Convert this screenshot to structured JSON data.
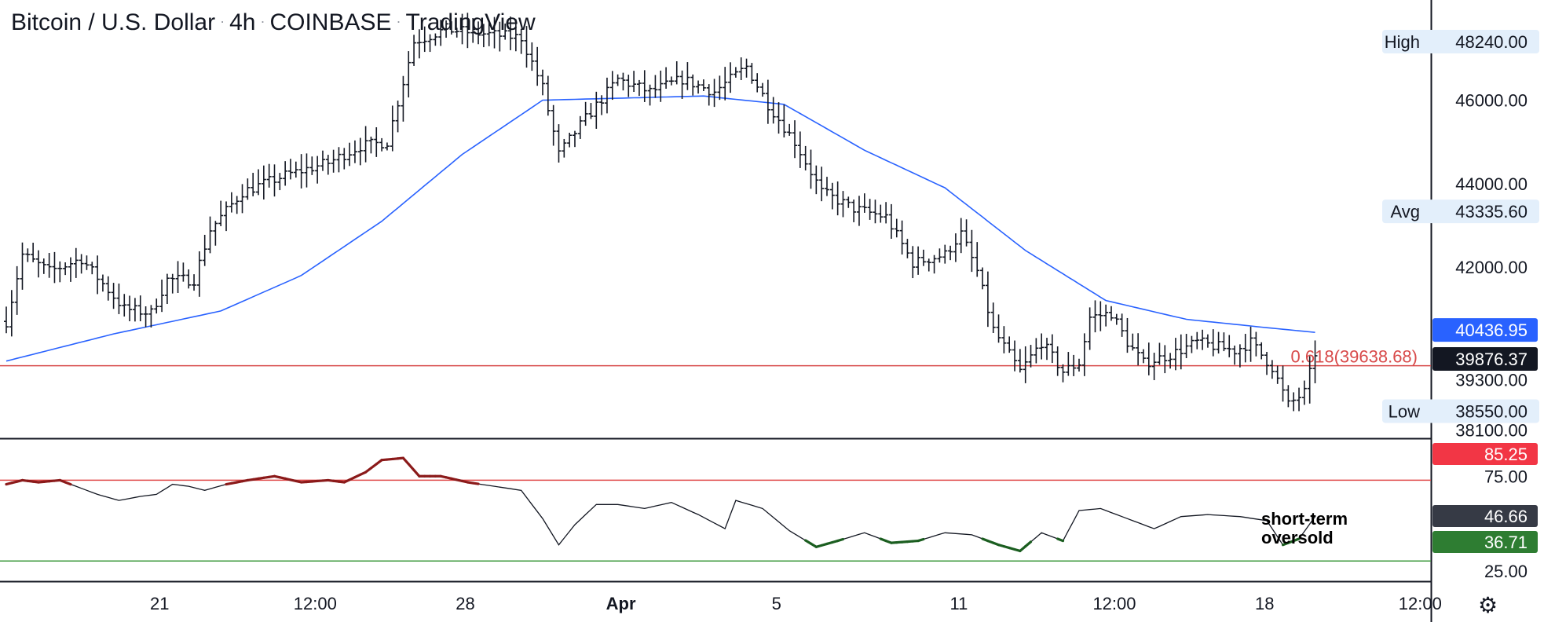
{
  "header": {
    "symbol": "Bitcoin / U.S. Dollar",
    "interval": "4h",
    "exchange": "COINBASE",
    "platform": "TradingView",
    "separator": "·"
  },
  "price_axis": {
    "ticks": [
      46000,
      44000,
      42000,
      39300,
      38100
    ],
    "tick_labels": [
      "46000.00",
      "44000.00",
      "42000.00",
      "39300.00",
      "38100.00"
    ],
    "range": [
      37900,
      48400
    ]
  },
  "stats_labels": {
    "high": {
      "label": "High",
      "value": "48240.00"
    },
    "avg": {
      "label": "Avg",
      "value": "43335.60"
    },
    "low": {
      "label": "Low",
      "value": "38550.00"
    }
  },
  "price_badges": {
    "ma": {
      "value": "40436.95",
      "color": "#2962ff"
    },
    "last": {
      "value": "39876.37",
      "color": "#131722"
    }
  },
  "fib_level": {
    "ratio": "0.618",
    "price": 39638.68,
    "label": "0.618(39638.68)",
    "color": "#d84a4a"
  },
  "time_axis": {
    "labels": [
      "21",
      "12:00",
      "28",
      "Apr",
      "5",
      "11",
      "12:00",
      "18",
      "12:00"
    ],
    "bold": [
      false,
      false,
      false,
      true,
      false,
      false,
      false,
      false,
      false
    ],
    "bar_index": [
      28,
      57,
      85,
      114,
      143,
      177,
      206,
      234,
      263
    ]
  },
  "rsi": {
    "upper_level": 70,
    "lower_level": 30,
    "axis_labels": [
      "75.00",
      "25.00"
    ],
    "range": [
      20,
      90
    ],
    "badges": [
      {
        "value": "85.25",
        "color": "#f23645"
      },
      {
        "value": "46.66",
        "color": "#363a45"
      },
      {
        "value": "36.71",
        "color": "#2e7d32"
      }
    ],
    "annotation": [
      "short-term",
      "oversold"
    ]
  },
  "chart_data": {
    "type": "candlestick",
    "title": "Bitcoin / U.S. Dollar · 4h · COINBASE · TradingView",
    "xlabel": "",
    "ylabel": "",
    "ylim": [
      37900,
      48400
    ],
    "keyframes_close": [
      [
        0,
        40700
      ],
      [
        3,
        42300
      ],
      [
        8,
        41900
      ],
      [
        14,
        42200
      ],
      [
        22,
        41000
      ],
      [
        27,
        40900
      ],
      [
        30,
        41700
      ],
      [
        35,
        41700
      ],
      [
        38,
        42900
      ],
      [
        44,
        43800
      ],
      [
        52,
        44200
      ],
      [
        60,
        44500
      ],
      [
        66,
        44900
      ],
      [
        71,
        45000
      ],
      [
        76,
        47400
      ],
      [
        82,
        47700
      ],
      [
        88,
        47600
      ],
      [
        96,
        47500
      ],
      [
        100,
        46300
      ],
      [
        103,
        44700
      ],
      [
        107,
        45400
      ],
      [
        114,
        46500
      ],
      [
        120,
        46200
      ],
      [
        126,
        46500
      ],
      [
        132,
        46200
      ],
      [
        138,
        46800
      ],
      [
        142,
        45900
      ],
      [
        147,
        45000
      ],
      [
        152,
        43800
      ],
      [
        158,
        43400
      ],
      [
        164,
        43200
      ],
      [
        169,
        42100
      ],
      [
        175,
        42300
      ],
      [
        178,
        42800
      ],
      [
        181,
        41900
      ],
      [
        184,
        40500
      ],
      [
        189,
        39500
      ],
      [
        193,
        40200
      ],
      [
        197,
        39500
      ],
      [
        200,
        39700
      ],
      [
        202,
        40800
      ],
      [
        206,
        40900
      ],
      [
        209,
        40200
      ],
      [
        212,
        39700
      ],
      [
        217,
        39900
      ],
      [
        222,
        40200
      ],
      [
        229,
        40000
      ],
      [
        232,
        40200
      ],
      [
        236,
        39600
      ],
      [
        239,
        38700
      ],
      [
        242,
        39000
      ],
      [
        244,
        39900
      ]
    ],
    "high": 48240.0,
    "low": 38550.0,
    "avg": 43335.6,
    "last": 39876.37,
    "ma_last": 40436.95,
    "moving_average": [
      [
        0,
        39750
      ],
      [
        20,
        40400
      ],
      [
        40,
        40950
      ],
      [
        55,
        41800
      ],
      [
        70,
        43100
      ],
      [
        85,
        44700
      ],
      [
        100,
        46000
      ],
      [
        115,
        46050
      ],
      [
        130,
        46100
      ],
      [
        145,
        45900
      ],
      [
        160,
        44800
      ],
      [
        175,
        43900
      ],
      [
        190,
        42400
      ],
      [
        205,
        41200
      ],
      [
        220,
        40750
      ],
      [
        235,
        40550
      ],
      [
        244,
        40437
      ]
    ],
    "fib_0_618": 39638.68,
    "rsi": [
      [
        0,
        68
      ],
      [
        3,
        70
      ],
      [
        6,
        69
      ],
      [
        10,
        70
      ],
      [
        14,
        66
      ],
      [
        17,
        63
      ],
      [
        21,
        60
      ],
      [
        25,
        62
      ],
      [
        28,
        63
      ],
      [
        31,
        68
      ],
      [
        34,
        67
      ],
      [
        37,
        65
      ],
      [
        41,
        68
      ],
      [
        45,
        70
      ],
      [
        50,
        72
      ],
      [
        55,
        69
      ],
      [
        60,
        70
      ],
      [
        63,
        69
      ],
      [
        67,
        74
      ],
      [
        70,
        80
      ],
      [
        74,
        81
      ],
      [
        77,
        72
      ],
      [
        81,
        72
      ],
      [
        86,
        69
      ],
      [
        91,
        67
      ],
      [
        96,
        65
      ],
      [
        100,
        51
      ],
      [
        103,
        38
      ],
      [
        106,
        48
      ],
      [
        110,
        58
      ],
      [
        114,
        58
      ],
      [
        119,
        56
      ],
      [
        124,
        59
      ],
      [
        129,
        53
      ],
      [
        134,
        46
      ],
      [
        136,
        60
      ],
      [
        141,
        56
      ],
      [
        146,
        45
      ],
      [
        151,
        37
      ],
      [
        155,
        40
      ],
      [
        160,
        44
      ],
      [
        165,
        39
      ],
      [
        170,
        40
      ],
      [
        175,
        44
      ],
      [
        180,
        43
      ],
      [
        185,
        38
      ],
      [
        189,
        35
      ],
      [
        193,
        44
      ],
      [
        197,
        40
      ],
      [
        200,
        55
      ],
      [
        204,
        56
      ],
      [
        209,
        51
      ],
      [
        214,
        46
      ],
      [
        219,
        52
      ],
      [
        224,
        53
      ],
      [
        230,
        52
      ],
      [
        235,
        50
      ],
      [
        238,
        38
      ],
      [
        241,
        41
      ],
      [
        244,
        52
      ]
    ],
    "rsi_upper": 70,
    "rsi_lower": 30,
    "rsi_last": 46.66
  }
}
